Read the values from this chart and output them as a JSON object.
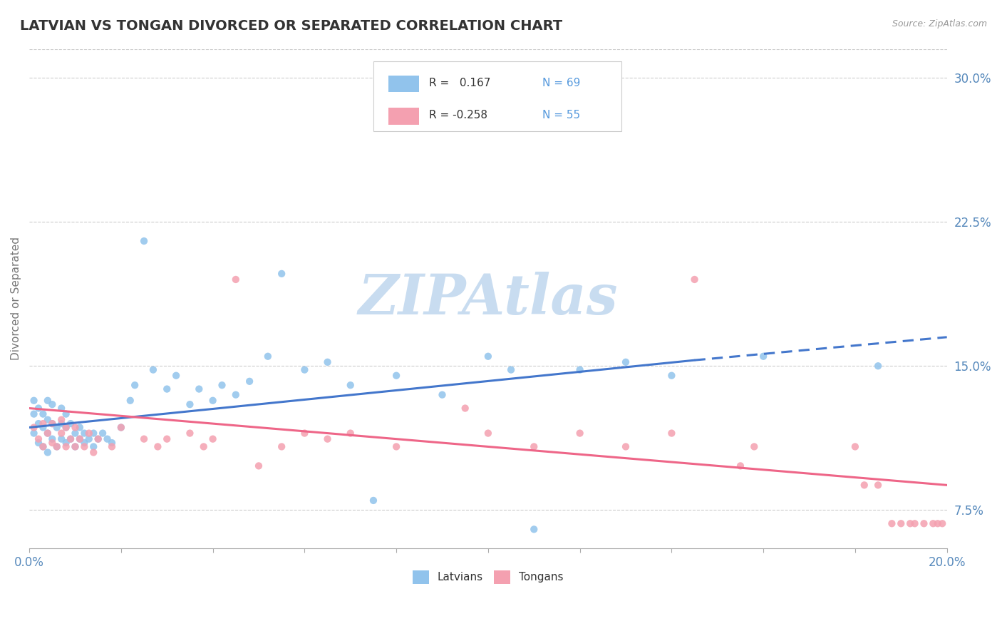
{
  "title": "LATVIAN VS TONGAN DIVORCED OR SEPARATED CORRELATION CHART",
  "source_text": "Source: ZipAtlas.com",
  "ylabel": "Divorced or Separated",
  "xlim": [
    0.0,
    0.2
  ],
  "ylim": [
    0.055,
    0.315
  ],
  "xticks": [
    0.0,
    0.02,
    0.04,
    0.06,
    0.08,
    0.1,
    0.12,
    0.14,
    0.16,
    0.18,
    0.2
  ],
  "yticks": [
    0.075,
    0.15,
    0.225,
    0.3
  ],
  "ytick_labels": [
    "7.5%",
    "15.0%",
    "22.5%",
    "30.0%"
  ],
  "legend_R1": " 0.167",
  "legend_N1": "69",
  "legend_R2": "-0.258",
  "legend_N2": "55",
  "color_latvian": "#91C3EC",
  "color_tongan": "#F4A0B0",
  "color_line_latvian": "#4477CC",
  "color_line_tongan": "#EE6688",
  "watermark_color": "#C8DCF0",
  "background_color": "#FFFFFF",
  "grid_color": "#CCCCCC",
  "title_color": "#333333",
  "latvian_x": [
    0.001,
    0.001,
    0.001,
    0.002,
    0.002,
    0.002,
    0.003,
    0.003,
    0.003,
    0.004,
    0.004,
    0.004,
    0.004,
    0.005,
    0.005,
    0.005,
    0.006,
    0.006,
    0.007,
    0.007,
    0.007,
    0.008,
    0.008,
    0.008,
    0.009,
    0.009,
    0.01,
    0.01,
    0.011,
    0.011,
    0.012,
    0.012,
    0.013,
    0.014,
    0.014,
    0.015,
    0.016,
    0.017,
    0.018,
    0.02,
    0.022,
    0.023,
    0.025,
    0.027,
    0.03,
    0.032,
    0.035,
    0.037,
    0.04,
    0.042,
    0.045,
    0.048,
    0.052,
    0.055,
    0.06,
    0.065,
    0.07,
    0.075,
    0.08,
    0.085,
    0.09,
    0.1,
    0.105,
    0.11,
    0.12,
    0.13,
    0.14,
    0.16,
    0.185
  ],
  "latvian_y": [
    0.115,
    0.125,
    0.132,
    0.11,
    0.12,
    0.128,
    0.108,
    0.118,
    0.125,
    0.105,
    0.115,
    0.122,
    0.132,
    0.112,
    0.12,
    0.13,
    0.108,
    0.118,
    0.112,
    0.12,
    0.128,
    0.11,
    0.118,
    0.125,
    0.112,
    0.12,
    0.108,
    0.115,
    0.112,
    0.118,
    0.11,
    0.115,
    0.112,
    0.108,
    0.115,
    0.112,
    0.115,
    0.112,
    0.11,
    0.118,
    0.132,
    0.14,
    0.215,
    0.148,
    0.138,
    0.145,
    0.13,
    0.138,
    0.132,
    0.14,
    0.135,
    0.142,
    0.155,
    0.198,
    0.148,
    0.152,
    0.14,
    0.08,
    0.145,
    0.282,
    0.135,
    0.155,
    0.148,
    0.065,
    0.148,
    0.152,
    0.145,
    0.155,
    0.15
  ],
  "tongan_x": [
    0.001,
    0.002,
    0.003,
    0.003,
    0.004,
    0.005,
    0.005,
    0.006,
    0.007,
    0.007,
    0.008,
    0.008,
    0.009,
    0.01,
    0.01,
    0.011,
    0.012,
    0.013,
    0.014,
    0.015,
    0.018,
    0.02,
    0.025,
    0.028,
    0.03,
    0.035,
    0.038,
    0.04,
    0.045,
    0.05,
    0.055,
    0.06,
    0.065,
    0.07,
    0.08,
    0.095,
    0.1,
    0.11,
    0.12,
    0.13,
    0.14,
    0.145,
    0.155,
    0.158,
    0.18,
    0.182,
    0.185,
    0.188,
    0.19,
    0.192,
    0.193,
    0.195,
    0.197,
    0.198,
    0.199
  ],
  "tongan_y": [
    0.118,
    0.112,
    0.108,
    0.12,
    0.115,
    0.11,
    0.12,
    0.108,
    0.115,
    0.122,
    0.108,
    0.118,
    0.112,
    0.108,
    0.118,
    0.112,
    0.108,
    0.115,
    0.105,
    0.112,
    0.108,
    0.118,
    0.112,
    0.108,
    0.112,
    0.115,
    0.108,
    0.112,
    0.195,
    0.098,
    0.108,
    0.115,
    0.112,
    0.115,
    0.108,
    0.128,
    0.115,
    0.108,
    0.115,
    0.108,
    0.115,
    0.195,
    0.098,
    0.108,
    0.108,
    0.088,
    0.088,
    0.068,
    0.068,
    0.068,
    0.068,
    0.068,
    0.068,
    0.068,
    0.068
  ],
  "line_latvian_x0": 0.0,
  "line_latvian_y0": 0.118,
  "line_latvian_x1": 0.145,
  "line_latvian_y1": 0.153,
  "line_latvian_dash_x1": 0.2,
  "line_latvian_dash_y1": 0.165,
  "line_tongan_x0": 0.0,
  "line_tongan_y0": 0.128,
  "line_tongan_x1": 0.2,
  "line_tongan_y1": 0.088
}
